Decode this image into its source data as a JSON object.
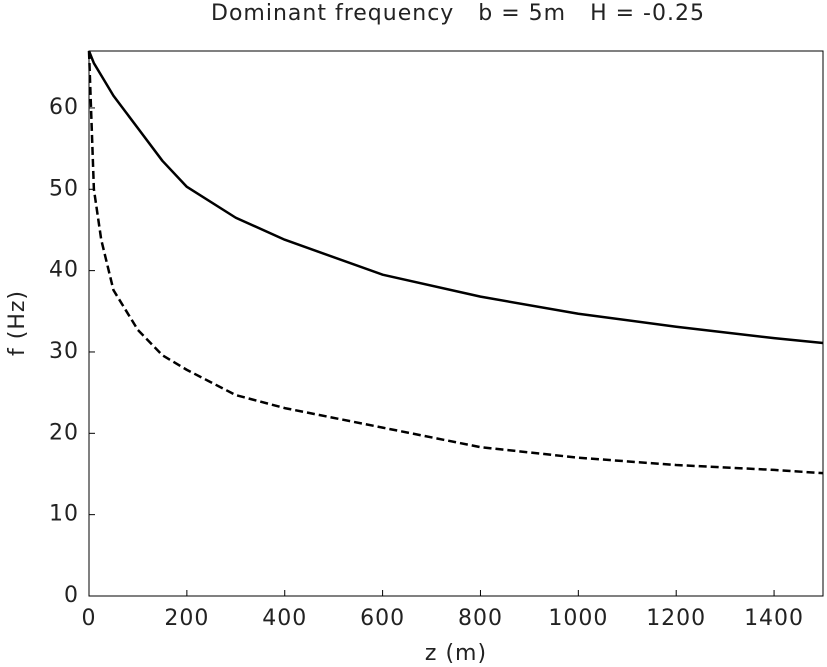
{
  "chart_data": {
    "type": "line",
    "title": "Dominant frequency   b = 5m   H = -0.25",
    "x_label": "z (m)",
    "y_label": "f (Hz)",
    "x": [
      0,
      10,
      25,
      50,
      100,
      150,
      200,
      300,
      400,
      600,
      800,
      1000,
      1200,
      1400,
      1500
    ],
    "series": [
      {
        "color": "#000000",
        "line_style": "solid",
        "values": [
          67,
          65.5,
          64,
          61.5,
          57.5,
          53.5,
          50.3,
          46.5,
          43.8,
          39.5,
          36.8,
          34.7,
          33.1,
          31.7,
          31.1
        ]
      },
      {
        "color": "#000000",
        "line_style": "dashed",
        "values": [
          67,
          50,
          43.8,
          37.6,
          32.7,
          29.6,
          27.8,
          24.7,
          23.1,
          20.7,
          18.3,
          17.0,
          16.1,
          15.5,
          15.1
        ]
      }
    ],
    "xlim": [
      0,
      1500
    ],
    "xticks": [
      0,
      200,
      400,
      600,
      800,
      1000,
      1200,
      1400
    ],
    "ylim": [
      0,
      67
    ],
    "yticks": [
      0,
      10,
      20,
      30,
      40,
      50,
      60
    ],
    "grid": false
  }
}
